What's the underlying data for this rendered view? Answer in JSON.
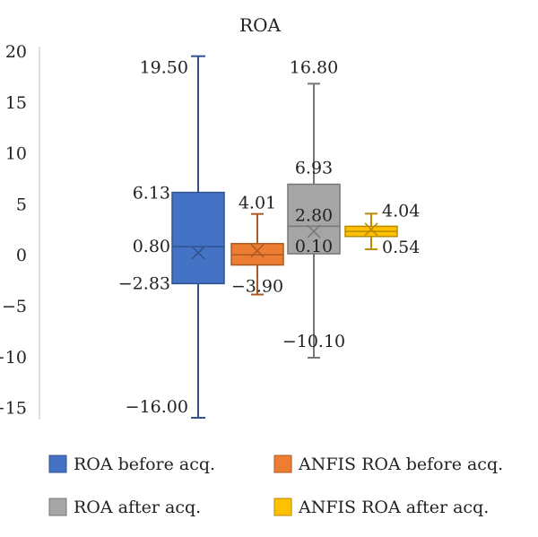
{
  "chart_data": {
    "type": "box",
    "title": "ROA",
    "xlabel": "",
    "ylabel": "",
    "ylim": [
      -16,
      20
    ],
    "yticks": [
      20,
      15,
      10,
      5,
      0,
      -5,
      -10,
      -15
    ],
    "ytick_labels": [
      "20",
      "15",
      "10",
      "5",
      "0",
      "−5",
      "−10",
      "−15"
    ],
    "grid": false,
    "legend_position": "bottom",
    "series": [
      {
        "name": "ROA before acq.",
        "color": "#4472C4",
        "min": -16.0,
        "q1": -2.83,
        "median": 0.8,
        "q3": 6.13,
        "max": 19.5,
        "mean": 0.2,
        "labels": [
          {
            "value": 19.5,
            "text": "19.50"
          },
          {
            "value": 6.13,
            "text": "6.13"
          },
          {
            "value": 0.8,
            "text": "0.80"
          },
          {
            "value": -2.83,
            "text": "−2.83"
          },
          {
            "value": -16.0,
            "text": "−16.00"
          }
        ]
      },
      {
        "name": "ANFIS ROA before acq.",
        "color": "#ED7D31",
        "min": -3.9,
        "q1": -1.0,
        "median": 0.0,
        "q3": 1.1,
        "max": 4.01,
        "mean": 0.4,
        "labels": [
          {
            "value": 4.01,
            "text": "4.01"
          },
          {
            "value": -3.9,
            "text": "−3.90"
          }
        ]
      },
      {
        "name": "ROA after acq.",
        "color": "#A5A5A5",
        "min": -10.1,
        "q1": 0.1,
        "median": 2.8,
        "q3": 6.93,
        "max": 16.8,
        "mean": 2.3,
        "labels": [
          {
            "value": 16.8,
            "text": "16.80"
          },
          {
            "value": 6.93,
            "text": "6.93"
          },
          {
            "value": 2.8,
            "text": "2.80"
          },
          {
            "value": 0.1,
            "text": "0.10"
          },
          {
            "value": -10.1,
            "text": "−10.10"
          }
        ]
      },
      {
        "name": "ANFIS ROA after acq.",
        "color": "#FFC000",
        "min": 0.54,
        "q1": 1.8,
        "median": 2.3,
        "q3": 2.8,
        "max": 4.04,
        "mean": 2.5,
        "labels": [
          {
            "value": 4.04,
            "text": "4.04"
          },
          {
            "value": 0.54,
            "text": "0.54"
          }
        ]
      }
    ]
  }
}
